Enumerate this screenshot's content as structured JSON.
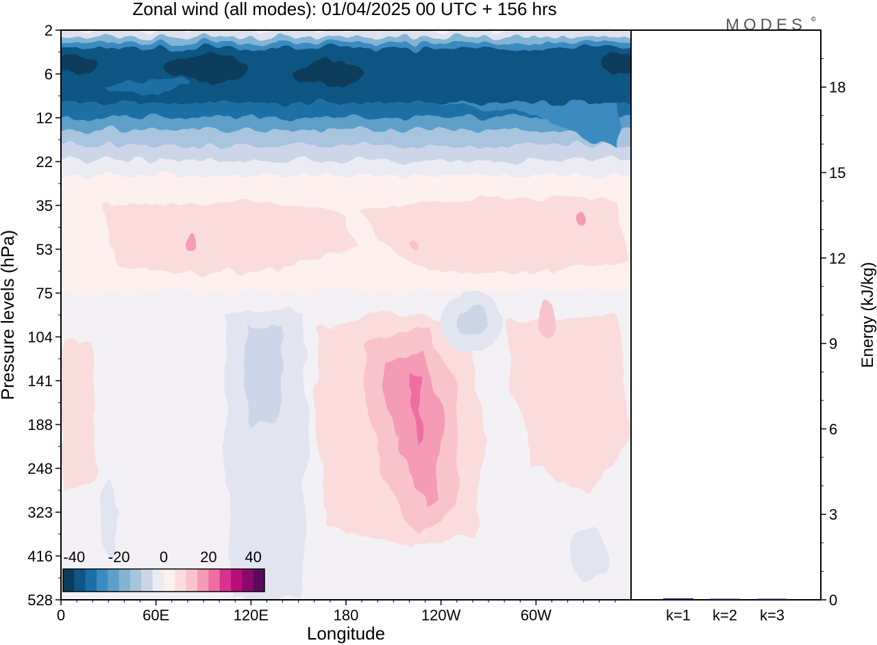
{
  "title": "Zonal wind (all modes):  01/04/2025  00 UTC  + 156 hrs",
  "brand": "MODES",
  "brand_mark": "©",
  "colors": {
    "scale": [
      "#0b3c5d",
      "#0f5684",
      "#1a6fa6",
      "#3a8bc0",
      "#5d9fc9",
      "#84b4d4",
      "#a9c4dd",
      "#ccd6e8",
      "#ebebf4",
      "#fdf0ee",
      "#fbdcdc",
      "#f9c3cb",
      "#f59bb6",
      "#ee6ea2",
      "#d9318f",
      "#b80e7a",
      "#8a0a6c",
      "#5a0a5c"
    ],
    "frame": "#000000"
  },
  "chart_data": [
    {
      "type": "heatmap",
      "title": "Zonal wind (all modes):  01/04/2025  00 UTC  + 156 hrs",
      "xlabel": "Longitude",
      "ylabel": "Pressure levels (hPa)",
      "x_ticks": [
        "0",
        "60E",
        "120E",
        "180",
        "120W",
        "60W"
      ],
      "y_ticks": [
        "2",
        "6",
        "12",
        "22",
        "35",
        "53",
        "75",
        "104",
        "141",
        "188",
        "248",
        "323",
        "416",
        "528"
      ],
      "colorbar": {
        "ticks": [
          "-40",
          "-20",
          "0",
          "20",
          "40"
        ],
        "levels": [
          -45,
          -40,
          -35,
          -30,
          -25,
          -20,
          -15,
          -10,
          -5,
          0,
          5,
          10,
          15,
          20,
          25,
          30,
          35,
          40,
          45
        ]
      },
      "features": [
        {
          "level_range_hPa": [
            2,
            12
          ],
          "value": -40,
          "note": "strong easterly band"
        },
        {
          "level_range_hPa": [
            35,
            75
          ],
          "value": 5
        },
        {
          "lon": 200,
          "level_range_hPa": [
            104,
            323
          ],
          "value": 20
        },
        {
          "lon": 255,
          "level_range_hPa": [
            75,
            141
          ],
          "value": -5
        },
        {
          "lon": 115,
          "level_range_hPa": [
            104,
            528
          ],
          "value": -5
        }
      ]
    },
    {
      "type": "bar",
      "categories": [
        "k=1",
        "k=2",
        "k=3"
      ],
      "values": [
        0.05,
        0.02,
        0.03
      ],
      "ylabel": "Energy (kJ/kg)",
      "y_ticks": [
        "0",
        "3",
        "6",
        "9",
        "12",
        "15",
        "18"
      ],
      "ylim": [
        0,
        20
      ]
    }
  ]
}
